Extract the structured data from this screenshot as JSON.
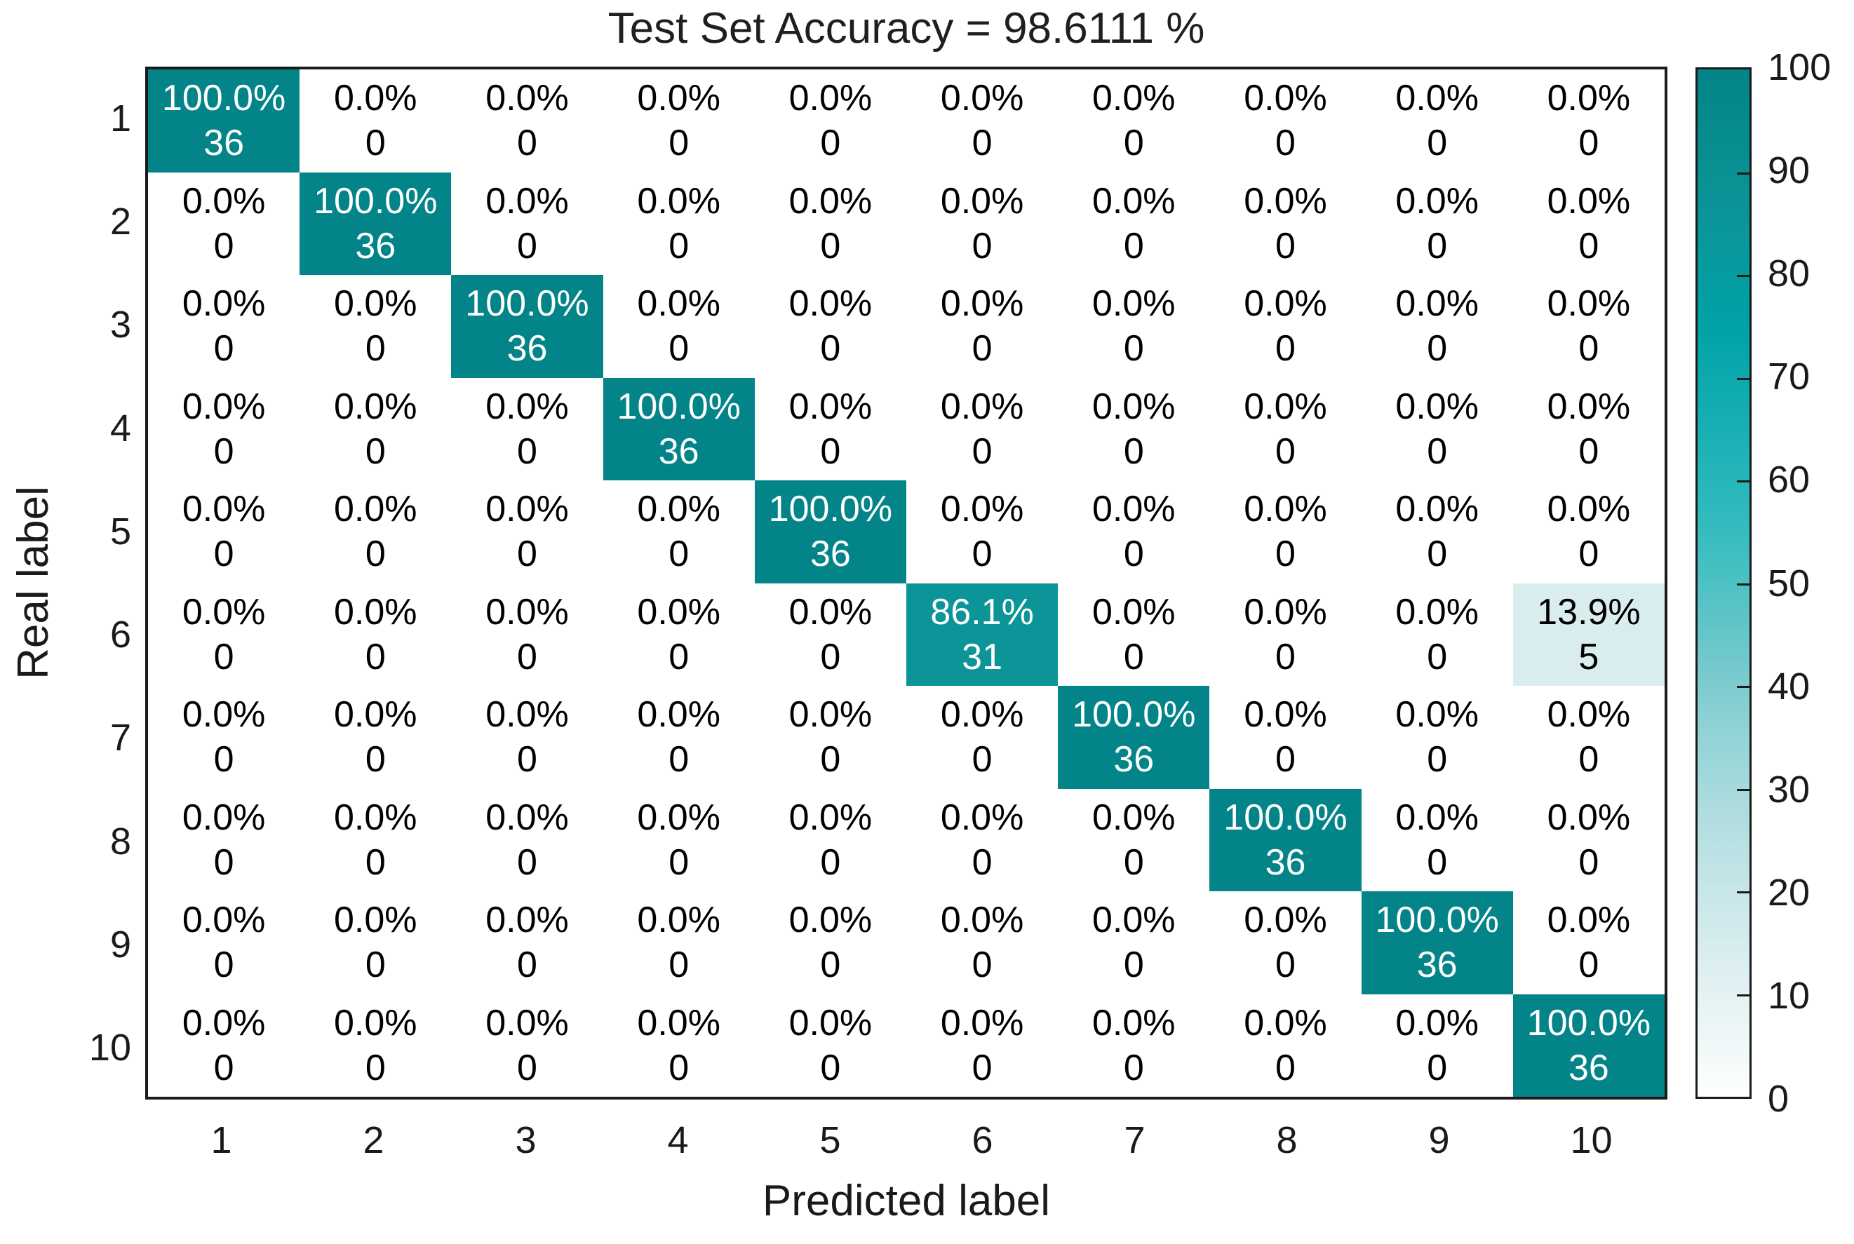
{
  "chart_data": {
    "type": "heatmap",
    "title": "Test Set Accuracy = 98.6111 %",
    "xlabel": "Predicted label",
    "ylabel": "Real label",
    "x_ticks": [
      "1",
      "2",
      "3",
      "4",
      "5",
      "6",
      "7",
      "8",
      "9",
      "10"
    ],
    "y_ticks": [
      "1",
      "2",
      "3",
      "4",
      "5",
      "6",
      "7",
      "8",
      "9",
      "10"
    ],
    "grid": false,
    "value_range": [
      0,
      100
    ],
    "value_colors": {
      "0": "#ffffff",
      "13.9": "#d9edef",
      "86.1": "#0b9598",
      "100": "#038488"
    },
    "cell_text_dark": "#000000",
    "cell_text_light": "#ffffff",
    "text_light_threshold": 50,
    "rows": [
      {
        "label": "1",
        "cells": [
          [
            "100.0%",
            "36",
            100
          ],
          [
            "0.0%",
            "0",
            0
          ],
          [
            "0.0%",
            "0",
            0
          ],
          [
            "0.0%",
            "0",
            0
          ],
          [
            "0.0%",
            "0",
            0
          ],
          [
            "0.0%",
            "0",
            0
          ],
          [
            "0.0%",
            "0",
            0
          ],
          [
            "0.0%",
            "0",
            0
          ],
          [
            "0.0%",
            "0",
            0
          ],
          [
            "0.0%",
            "0",
            0
          ]
        ]
      },
      {
        "label": "2",
        "cells": [
          [
            "0.0%",
            "0",
            0
          ],
          [
            "100.0%",
            "36",
            100
          ],
          [
            "0.0%",
            "0",
            0
          ],
          [
            "0.0%",
            "0",
            0
          ],
          [
            "0.0%",
            "0",
            0
          ],
          [
            "0.0%",
            "0",
            0
          ],
          [
            "0.0%",
            "0",
            0
          ],
          [
            "0.0%",
            "0",
            0
          ],
          [
            "0.0%",
            "0",
            0
          ],
          [
            "0.0%",
            "0",
            0
          ]
        ]
      },
      {
        "label": "3",
        "cells": [
          [
            "0.0%",
            "0",
            0
          ],
          [
            "0.0%",
            "0",
            0
          ],
          [
            "100.0%",
            "36",
            100
          ],
          [
            "0.0%",
            "0",
            0
          ],
          [
            "0.0%",
            "0",
            0
          ],
          [
            "0.0%",
            "0",
            0
          ],
          [
            "0.0%",
            "0",
            0
          ],
          [
            "0.0%",
            "0",
            0
          ],
          [
            "0.0%",
            "0",
            0
          ],
          [
            "0.0%",
            "0",
            0
          ]
        ]
      },
      {
        "label": "4",
        "cells": [
          [
            "0.0%",
            "0",
            0
          ],
          [
            "0.0%",
            "0",
            0
          ],
          [
            "0.0%",
            "0",
            0
          ],
          [
            "100.0%",
            "36",
            100
          ],
          [
            "0.0%",
            "0",
            0
          ],
          [
            "0.0%",
            "0",
            0
          ],
          [
            "0.0%",
            "0",
            0
          ],
          [
            "0.0%",
            "0",
            0
          ],
          [
            "0.0%",
            "0",
            0
          ],
          [
            "0.0%",
            "0",
            0
          ]
        ]
      },
      {
        "label": "5",
        "cells": [
          [
            "0.0%",
            "0",
            0
          ],
          [
            "0.0%",
            "0",
            0
          ],
          [
            "0.0%",
            "0",
            0
          ],
          [
            "0.0%",
            "0",
            0
          ],
          [
            "100.0%",
            "36",
            100
          ],
          [
            "0.0%",
            "0",
            0
          ],
          [
            "0.0%",
            "0",
            0
          ],
          [
            "0.0%",
            "0",
            0
          ],
          [
            "0.0%",
            "0",
            0
          ],
          [
            "0.0%",
            "0",
            0
          ]
        ]
      },
      {
        "label": "6",
        "cells": [
          [
            "0.0%",
            "0",
            0
          ],
          [
            "0.0%",
            "0",
            0
          ],
          [
            "0.0%",
            "0",
            0
          ],
          [
            "0.0%",
            "0",
            0
          ],
          [
            "0.0%",
            "0",
            0
          ],
          [
            "86.1%",
            "31",
            86.1
          ],
          [
            "0.0%",
            "0",
            0
          ],
          [
            "0.0%",
            "0",
            0
          ],
          [
            "0.0%",
            "0",
            0
          ],
          [
            "13.9%",
            "5",
            13.9
          ]
        ]
      },
      {
        "label": "7",
        "cells": [
          [
            "0.0%",
            "0",
            0
          ],
          [
            "0.0%",
            "0",
            0
          ],
          [
            "0.0%",
            "0",
            0
          ],
          [
            "0.0%",
            "0",
            0
          ],
          [
            "0.0%",
            "0",
            0
          ],
          [
            "0.0%",
            "0",
            0
          ],
          [
            "100.0%",
            "36",
            100
          ],
          [
            "0.0%",
            "0",
            0
          ],
          [
            "0.0%",
            "0",
            0
          ],
          [
            "0.0%",
            "0",
            0
          ]
        ]
      },
      {
        "label": "8",
        "cells": [
          [
            "0.0%",
            "0",
            0
          ],
          [
            "0.0%",
            "0",
            0
          ],
          [
            "0.0%",
            "0",
            0
          ],
          [
            "0.0%",
            "0",
            0
          ],
          [
            "0.0%",
            "0",
            0
          ],
          [
            "0.0%",
            "0",
            0
          ],
          [
            "0.0%",
            "0",
            0
          ],
          [
            "100.0%",
            "36",
            100
          ],
          [
            "0.0%",
            "0",
            0
          ],
          [
            "0.0%",
            "0",
            0
          ]
        ]
      },
      {
        "label": "9",
        "cells": [
          [
            "0.0%",
            "0",
            0
          ],
          [
            "0.0%",
            "0",
            0
          ],
          [
            "0.0%",
            "0",
            0
          ],
          [
            "0.0%",
            "0",
            0
          ],
          [
            "0.0%",
            "0",
            0
          ],
          [
            "0.0%",
            "0",
            0
          ],
          [
            "0.0%",
            "0",
            0
          ],
          [
            "0.0%",
            "0",
            0
          ],
          [
            "100.0%",
            "36",
            100
          ],
          [
            "0.0%",
            "0",
            0
          ]
        ]
      },
      {
        "label": "10",
        "cells": [
          [
            "0.0%",
            "0",
            0
          ],
          [
            "0.0%",
            "0",
            0
          ],
          [
            "0.0%",
            "0",
            0
          ],
          [
            "0.0%",
            "0",
            0
          ],
          [
            "0.0%",
            "0",
            0
          ],
          [
            "0.0%",
            "0",
            0
          ],
          [
            "0.0%",
            "0",
            0
          ],
          [
            "0.0%",
            "0",
            0
          ],
          [
            "0.0%",
            "0",
            0
          ],
          [
            "100.0%",
            "36",
            100
          ]
        ]
      }
    ],
    "colorbar": {
      "min": 0,
      "max": 100,
      "tick_labels": [
        "0",
        "10",
        "20",
        "30",
        "40",
        "50",
        "60",
        "70",
        "80",
        "90",
        "100"
      ],
      "legend_position": "right",
      "gradient_stops": [
        {
          "v": 0,
          "c": "#ffffff"
        },
        {
          "v": 5,
          "c": "#f0f8f8"
        },
        {
          "v": 14,
          "c": "#d9edef"
        },
        {
          "v": 26,
          "c": "#b5dfe2"
        },
        {
          "v": 36,
          "c": "#8fd2d5"
        },
        {
          "v": 42,
          "c": "#74c9cc"
        },
        {
          "v": 55,
          "c": "#35bcbf"
        },
        {
          "v": 65,
          "c": "#18b0b4"
        },
        {
          "v": 75,
          "c": "#00a2a6"
        },
        {
          "v": 86,
          "c": "#0b9598"
        },
        {
          "v": 100,
          "c": "#038488"
        }
      ]
    },
    "axis_color": "#1a1a1a"
  }
}
